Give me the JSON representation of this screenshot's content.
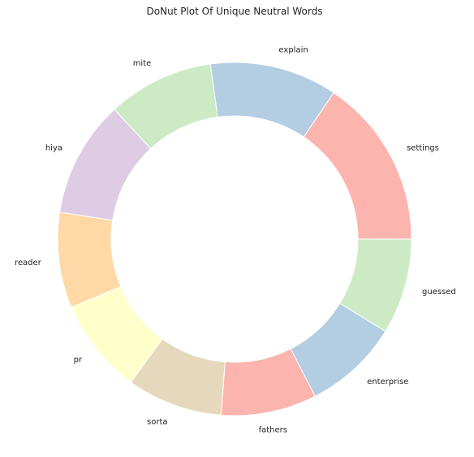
{
  "chart_data": {
    "type": "pie",
    "variant": "donut",
    "title": "DoNut Plot Of Unique Neutral Words",
    "start_angle_deg": 0,
    "direction": "counterclockwise",
    "slices": [
      {
        "label": "settings",
        "value": 16,
        "color": "#fbb4ae"
      },
      {
        "label": "explain",
        "value": 12,
        "color": "#b3cde3"
      },
      {
        "label": "mite",
        "value": 10,
        "color": "#ccebc5"
      },
      {
        "label": "hiya",
        "value": 11,
        "color": "#decbe4"
      },
      {
        "label": "reader",
        "value": 9,
        "color": "#fed9a6"
      },
      {
        "label": "pr",
        "value": 9,
        "color": "#ffffcc"
      },
      {
        "label": "sorta",
        "value": 9,
        "color": "#e5d8bd"
      },
      {
        "label": "fathers",
        "value": 9,
        "color": "#fbb4ae"
      },
      {
        "label": "enterprise",
        "value": 9,
        "color": "#b3cde3"
      },
      {
        "label": "guessed",
        "value": 9,
        "color": "#ccebc5"
      }
    ]
  }
}
